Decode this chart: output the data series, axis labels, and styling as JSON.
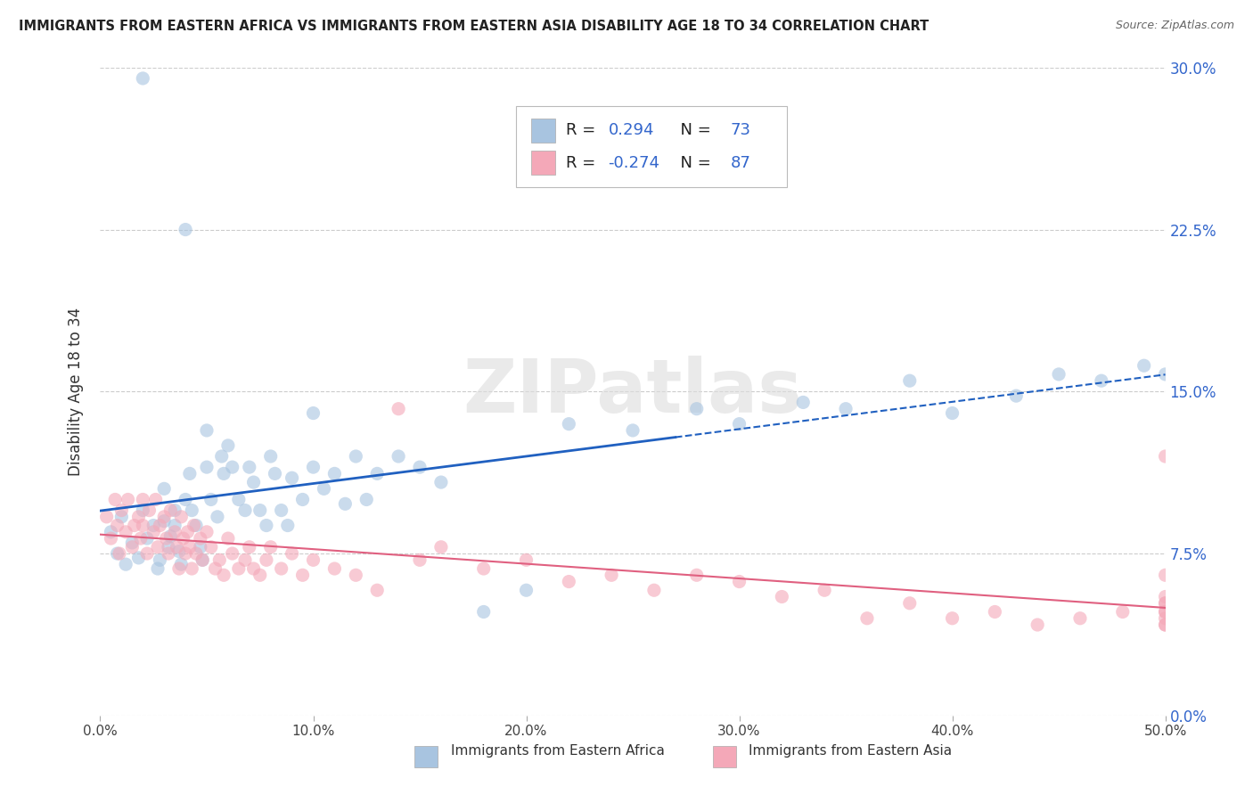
{
  "title": "IMMIGRANTS FROM EASTERN AFRICA VS IMMIGRANTS FROM EASTERN ASIA DISABILITY AGE 18 TO 34 CORRELATION CHART",
  "source": "Source: ZipAtlas.com",
  "ylabel": "Disability Age 18 to 34",
  "xlim": [
    0.0,
    0.5
  ],
  "ylim": [
    0.0,
    0.3
  ],
  "xticks": [
    0.0,
    0.1,
    0.2,
    0.3,
    0.4,
    0.5
  ],
  "xticklabels": [
    "0.0%",
    "10.0%",
    "20.0%",
    "30.0%",
    "40.0%",
    "50.0%"
  ],
  "yticks": [
    0.0,
    0.075,
    0.15,
    0.225,
    0.3
  ],
  "yticklabels": [
    "0.0%",
    "7.5%",
    "15.0%",
    "22.5%",
    "30.0%"
  ],
  "blue_R": 0.294,
  "blue_N": 73,
  "pink_R": -0.274,
  "pink_N": 87,
  "blue_color": "#A8C4E0",
  "pink_color": "#F4A8B8",
  "blue_line_color": "#2060C0",
  "pink_line_color": "#E06080",
  "legend_label_blue": "Immigrants from Eastern Africa",
  "legend_label_pink": "Immigrants from Eastern Asia",
  "watermark": "ZIPatlas",
  "background_color": "#FFFFFF",
  "blue_scatter_x": [
    0.005,
    0.008,
    0.01,
    0.012,
    0.015,
    0.018,
    0.02,
    0.02,
    0.022,
    0.025,
    0.027,
    0.028,
    0.03,
    0.03,
    0.032,
    0.033,
    0.035,
    0.035,
    0.037,
    0.038,
    0.04,
    0.04,
    0.042,
    0.043,
    0.045,
    0.047,
    0.048,
    0.05,
    0.05,
    0.052,
    0.055,
    0.057,
    0.058,
    0.06,
    0.062,
    0.065,
    0.068,
    0.07,
    0.072,
    0.075,
    0.078,
    0.08,
    0.082,
    0.085,
    0.088,
    0.09,
    0.095,
    0.1,
    0.1,
    0.105,
    0.11,
    0.115,
    0.12,
    0.125,
    0.13,
    0.14,
    0.15,
    0.16,
    0.18,
    0.2,
    0.22,
    0.25,
    0.28,
    0.3,
    0.33,
    0.35,
    0.38,
    0.4,
    0.43,
    0.45,
    0.47,
    0.49,
    0.5
  ],
  "blue_scatter_y": [
    0.085,
    0.075,
    0.092,
    0.07,
    0.08,
    0.073,
    0.295,
    0.095,
    0.082,
    0.088,
    0.068,
    0.072,
    0.105,
    0.09,
    0.078,
    0.083,
    0.095,
    0.088,
    0.076,
    0.07,
    0.225,
    0.1,
    0.112,
    0.095,
    0.088,
    0.078,
    0.072,
    0.132,
    0.115,
    0.1,
    0.092,
    0.12,
    0.112,
    0.125,
    0.115,
    0.1,
    0.095,
    0.115,
    0.108,
    0.095,
    0.088,
    0.12,
    0.112,
    0.095,
    0.088,
    0.11,
    0.1,
    0.14,
    0.115,
    0.105,
    0.112,
    0.098,
    0.12,
    0.1,
    0.112,
    0.12,
    0.115,
    0.108,
    0.048,
    0.058,
    0.135,
    0.132,
    0.142,
    0.135,
    0.145,
    0.142,
    0.155,
    0.14,
    0.148,
    0.158,
    0.155,
    0.162,
    0.158
  ],
  "pink_scatter_x": [
    0.003,
    0.005,
    0.007,
    0.008,
    0.009,
    0.01,
    0.012,
    0.013,
    0.015,
    0.016,
    0.018,
    0.019,
    0.02,
    0.02,
    0.022,
    0.023,
    0.025,
    0.026,
    0.027,
    0.028,
    0.03,
    0.031,
    0.032,
    0.033,
    0.035,
    0.036,
    0.037,
    0.038,
    0.039,
    0.04,
    0.041,
    0.042,
    0.043,
    0.044,
    0.045,
    0.047,
    0.048,
    0.05,
    0.052,
    0.054,
    0.056,
    0.058,
    0.06,
    0.062,
    0.065,
    0.068,
    0.07,
    0.072,
    0.075,
    0.078,
    0.08,
    0.085,
    0.09,
    0.095,
    0.1,
    0.11,
    0.12,
    0.13,
    0.14,
    0.15,
    0.16,
    0.18,
    0.2,
    0.22,
    0.24,
    0.26,
    0.28,
    0.3,
    0.32,
    0.34,
    0.36,
    0.38,
    0.4,
    0.42,
    0.44,
    0.46,
    0.48,
    0.5,
    0.5,
    0.5,
    0.5,
    0.5,
    0.5,
    0.5,
    0.5,
    0.5,
    0.5
  ],
  "pink_scatter_y": [
    0.092,
    0.082,
    0.1,
    0.088,
    0.075,
    0.095,
    0.085,
    0.1,
    0.078,
    0.088,
    0.092,
    0.082,
    0.1,
    0.088,
    0.075,
    0.095,
    0.085,
    0.1,
    0.078,
    0.088,
    0.092,
    0.082,
    0.075,
    0.095,
    0.085,
    0.078,
    0.068,
    0.092,
    0.082,
    0.075,
    0.085,
    0.078,
    0.068,
    0.088,
    0.075,
    0.082,
    0.072,
    0.085,
    0.078,
    0.068,
    0.072,
    0.065,
    0.082,
    0.075,
    0.068,
    0.072,
    0.078,
    0.068,
    0.065,
    0.072,
    0.078,
    0.068,
    0.075,
    0.065,
    0.072,
    0.068,
    0.065,
    0.058,
    0.142,
    0.072,
    0.078,
    0.068,
    0.072,
    0.062,
    0.065,
    0.058,
    0.065,
    0.062,
    0.055,
    0.058,
    0.045,
    0.052,
    0.045,
    0.048,
    0.042,
    0.045,
    0.048,
    0.045,
    0.12,
    0.065,
    0.055,
    0.052,
    0.048,
    0.042,
    0.042,
    0.048,
    0.052
  ],
  "blue_line_solid_end": 0.27,
  "blue_line_start_y": 0.072,
  "blue_line_end_y": 0.158,
  "pink_line_start_y": 0.082,
  "pink_line_end_y": 0.048
}
